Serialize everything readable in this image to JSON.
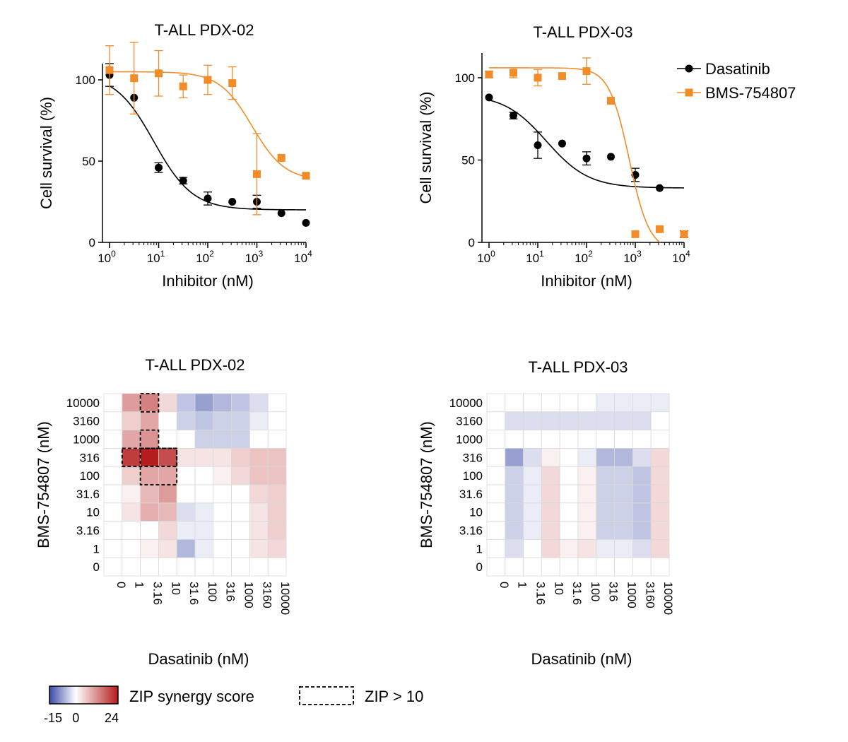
{
  "colors": {
    "dasatinib": "#000000",
    "bms": "#f28c28",
    "neg": "#3b4aa6",
    "pos": "#b51c1c",
    "zero": "#ffffff"
  },
  "chart_data": [
    {
      "type": "scatter",
      "title": "T-ALL PDX-02",
      "xlabel": "Inhibitor (nM)",
      "ylabel": "Cell survival (%)",
      "xscale": "log",
      "xlim": [
        1,
        10000
      ],
      "ylim": [
        0,
        110
      ],
      "xticks": [
        {
          "value": 1,
          "base": "10",
          "exp": "0"
        },
        {
          "value": 10,
          "base": "10",
          "exp": "1"
        },
        {
          "value": 100,
          "base": "10",
          "exp": "2"
        },
        {
          "value": 1000,
          "base": "10",
          "exp": "3"
        },
        {
          "value": 10000,
          "base": "10",
          "exp": "4"
        }
      ],
      "yticks": [
        {
          "value": 0,
          "label": "0"
        },
        {
          "value": 50,
          "label": "50"
        },
        {
          "value": 100,
          "label": "100"
        }
      ],
      "series": [
        {
          "name": "Dasatinib",
          "color": "#000000",
          "marker": "circle",
          "points": [
            {
              "x": 1,
              "y": 103,
              "err": 7
            },
            {
              "x": 3.16,
              "y": 89,
              "err": 0
            },
            {
              "x": 10,
              "y": 46,
              "err": 3
            },
            {
              "x": 31.6,
              "y": 38,
              "err": 2
            },
            {
              "x": 100,
              "y": 27,
              "err": 4
            },
            {
              "x": 316,
              "y": 25,
              "err": 0
            },
            {
              "x": 1000,
              "y": 25,
              "err": 4
            },
            {
              "x": 3160,
              "y": 18,
              "err": 0
            },
            {
              "x": 10000,
              "y": 12,
              "err": 0
            }
          ],
          "fit": {
            "top": 104,
            "bottom": 20,
            "ic50": 8,
            "hill": 1.1
          }
        },
        {
          "name": "BMS-754807",
          "color": "#f28c28",
          "marker": "square",
          "points": [
            {
              "x": 1,
              "y": 106,
              "err": 15
            },
            {
              "x": 3.16,
              "y": 101,
              "err": 22
            },
            {
              "x": 10,
              "y": 104,
              "err": 14
            },
            {
              "x": 31.6,
              "y": 96,
              "err": 7
            },
            {
              "x": 100,
              "y": 100,
              "err": 9
            },
            {
              "x": 316,
              "y": 98,
              "err": 10
            },
            {
              "x": 1000,
              "y": 42,
              "err": 25
            },
            {
              "x": 3160,
              "y": 52,
              "err": 0
            },
            {
              "x": 10000,
              "y": 41,
              "err": 0
            }
          ],
          "fit": {
            "top": 105,
            "bottom": 38,
            "ic50": 800,
            "hill": 1.3
          }
        }
      ]
    },
    {
      "type": "scatter",
      "title": "T-ALL PDX-03",
      "xlabel": "Inhibitor (nM)",
      "ylabel": "Cell survival (%)",
      "xscale": "log",
      "xlim": [
        1,
        10000
      ],
      "ylim": [
        0,
        115
      ],
      "legend": "top-right",
      "xticks": [
        {
          "value": 1,
          "base": "10",
          "exp": "0"
        },
        {
          "value": 10,
          "base": "10",
          "exp": "1"
        },
        {
          "value": 100,
          "base": "10",
          "exp": "2"
        },
        {
          "value": 1000,
          "base": "10",
          "exp": "3"
        },
        {
          "value": 10000,
          "base": "10",
          "exp": "4"
        }
      ],
      "yticks": [
        {
          "value": 0,
          "label": "0"
        },
        {
          "value": 50,
          "label": "50"
        },
        {
          "value": 100,
          "label": "100"
        }
      ],
      "series": [
        {
          "name": "Dasatinib",
          "color": "#000000",
          "marker": "circle",
          "points": [
            {
              "x": 1,
              "y": 88,
              "err": 0
            },
            {
              "x": 3.16,
              "y": 77,
              "err": 2
            },
            {
              "x": 10,
              "y": 59,
              "err": 8
            },
            {
              "x": 31.6,
              "y": 60,
              "err": 0
            },
            {
              "x": 100,
              "y": 51,
              "err": 4
            },
            {
              "x": 316,
              "y": 52,
              "err": 0
            },
            {
              "x": 1000,
              "y": 41,
              "err": 4
            },
            {
              "x": 3160,
              "y": 33,
              "err": 0
            },
            {
              "x": 10000,
              "y": 5,
              "err": 2
            }
          ],
          "fit": {
            "top": 90,
            "bottom": 33,
            "ic50": 15,
            "hill": 1.0
          }
        },
        {
          "name": "BMS-754807",
          "color": "#f28c28",
          "marker": "square",
          "points": [
            {
              "x": 1,
              "y": 102,
              "err": 2
            },
            {
              "x": 3.16,
              "y": 103,
              "err": 3
            },
            {
              "x": 10,
              "y": 100,
              "err": 5
            },
            {
              "x": 31.6,
              "y": 101,
              "err": 0
            },
            {
              "x": 100,
              "y": 104,
              "err": 8
            },
            {
              "x": 316,
              "y": 86,
              "err": 0
            },
            {
              "x": 1000,
              "y": 5,
              "err": 0
            },
            {
              "x": 3160,
              "y": 8,
              "err": 0
            },
            {
              "x": 10000,
              "y": 5,
              "err": 0
            }
          ],
          "fit": {
            "top": 106,
            "bottom": -5,
            "ic50": 750,
            "hill": 2.1
          }
        }
      ]
    },
    {
      "type": "heatmap",
      "title": "T-ALL PDX-02",
      "xlabel": "Dasatinib (nM)",
      "ylabel": "BMS-754807 (nM)",
      "x_categories": [
        "0",
        "1",
        "3.16",
        "10",
        "31.6",
        "100",
        "316",
        "1000",
        "3160",
        "10000"
      ],
      "y_categories": [
        "10000",
        "3160",
        "1000",
        "316",
        "100",
        "31.6",
        "10",
        "3.16",
        "1",
        "0"
      ],
      "values": [
        [
          0,
          9,
          12,
          3,
          -4,
          -7,
          -5,
          -4,
          -2,
          0
        ],
        [
          0,
          4,
          8,
          0,
          -3,
          -4,
          -3,
          -3,
          -1,
          0
        ],
        [
          0,
          8,
          10,
          0,
          0,
          -3,
          -3,
          -3,
          0,
          0
        ],
        [
          0,
          20,
          24,
          18,
          2,
          2,
          2,
          4,
          5,
          5
        ],
        [
          0,
          4,
          8,
          8,
          0,
          0,
          1,
          3,
          5,
          5
        ],
        [
          0,
          1,
          6,
          9,
          0,
          0,
          0,
          0,
          3,
          4
        ],
        [
          0,
          2,
          7,
          6,
          -2,
          -1,
          0,
          0,
          2,
          4
        ],
        [
          0,
          0,
          0,
          3,
          -1,
          -1,
          0,
          0,
          2,
          4
        ],
        [
          0,
          0,
          1,
          2,
          -5,
          -1,
          0,
          0,
          2,
          3
        ],
        [
          0,
          0,
          0,
          0,
          0,
          0,
          0,
          0,
          0,
          0
        ]
      ],
      "zip_boxes": [
        {
          "row0": 0,
          "row1": 0,
          "col0": 2,
          "col1": 2
        },
        {
          "row0": 2,
          "row1": 2,
          "col0": 2,
          "col1": 2
        },
        {
          "row0": 3,
          "row1": 3,
          "col0": 1,
          "col1": 3
        },
        {
          "row0": 3,
          "row1": 4,
          "col0": 2,
          "col1": 3
        }
      ]
    },
    {
      "type": "heatmap",
      "title": "T-ALL PDX-03",
      "xlabel": "Dasatinib (nM)",
      "ylabel": "BMS-754807 (nM)",
      "x_categories": [
        "0",
        "1",
        "3.16",
        "10",
        "31.6",
        "100",
        "316",
        "1000",
        "3160",
        "10000"
      ],
      "y_categories": [
        "10000",
        "3160",
        "1000",
        "316",
        "100",
        "31.6",
        "10",
        "3.16",
        "1",
        "0"
      ],
      "values": [
        [
          0,
          0,
          0,
          0,
          0,
          0,
          -1,
          -1,
          -1,
          -1
        ],
        [
          0,
          -2,
          -2,
          -2,
          -2,
          -2,
          -2,
          -2,
          -2,
          0
        ],
        [
          0,
          0,
          0,
          0,
          0,
          0,
          0,
          0,
          0,
          0
        ],
        [
          0,
          -7,
          -2,
          1,
          0,
          -1,
          -5,
          -5,
          -2,
          3
        ],
        [
          0,
          -3,
          -1,
          3,
          0,
          1,
          -3,
          -3,
          -4,
          3
        ],
        [
          0,
          -3,
          -1,
          3,
          0,
          1,
          -3,
          -3,
          -4,
          3
        ],
        [
          0,
          -3,
          -1,
          3,
          0,
          1,
          -3,
          -3,
          -4,
          3
        ],
        [
          0,
          -3,
          -1,
          3,
          0,
          1,
          -3,
          -3,
          -4,
          3
        ],
        [
          0,
          -2,
          0,
          3,
          1,
          2,
          -1,
          -1,
          -2,
          3
        ],
        [
          0,
          0,
          0,
          0,
          0,
          0,
          0,
          0,
          0,
          0
        ]
      ],
      "zip_boxes": []
    }
  ],
  "colorbar": {
    "label": "ZIP synergy score",
    "min_label": "-15",
    "mid_label": "0",
    "max_label": "24",
    "min": -15,
    "max": 24
  },
  "zip_legend": {
    "label": "ZIP > 10"
  }
}
